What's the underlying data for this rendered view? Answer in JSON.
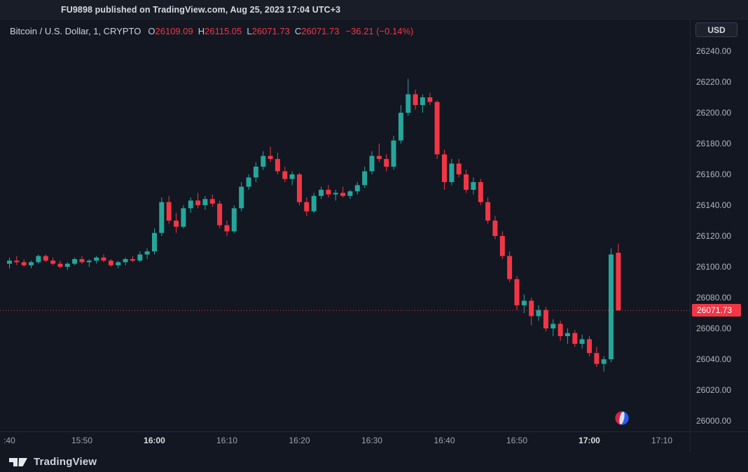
{
  "header": {
    "publish_text": "FU9898 published on TradingView.com, Aug 25, 2023 17:04 UTC+3"
  },
  "legend": {
    "symbol": "Bitcoin / U.S. Dollar, 1, CRYPTO",
    "o_label": "O",
    "o_value": "26109.09",
    "h_label": "H",
    "h_value": "26115.05",
    "l_label": "L",
    "l_value": "26071.73",
    "c_label": "C",
    "c_value": "26071.73",
    "change": "−36.21 (−0.14%)"
  },
  "currency_button": "USD",
  "footer": {
    "brand": "TradingView"
  },
  "colors": {
    "background": "#131722",
    "up": "#26a69a",
    "down": "#f23645",
    "axis_text": "#b2b5be",
    "price_label_bg": "#f23645",
    "price_label_text": "#ffffff"
  },
  "chart_data": {
    "type": "candlestick",
    "title": "Bitcoin / U.S. Dollar, 1, CRYPTO",
    "symbol": "BTCUSD",
    "interval_minutes": 1,
    "start_time": "15:40",
    "columns": [
      "open",
      "high",
      "low",
      "close"
    ],
    "candles": [
      [
        26102,
        26106,
        26099,
        26104
      ],
      [
        26104,
        26107,
        26101,
        26103
      ],
      [
        26103,
        26105,
        26100,
        26101
      ],
      [
        26101,
        26104,
        26099,
        26103
      ],
      [
        26103,
        26108,
        26102,
        26107
      ],
      [
        26107,
        26108,
        26103,
        26104
      ],
      [
        26104,
        26106,
        26101,
        26102
      ],
      [
        26102,
        26104,
        26099,
        26100
      ],
      [
        26100,
        26103,
        26098,
        26102
      ],
      [
        26102,
        26106,
        26101,
        26105
      ],
      [
        26105,
        26107,
        26102,
        26103
      ],
      [
        26103,
        26105,
        26100,
        26104
      ],
      [
        26104,
        26107,
        26102,
        26106
      ],
      [
        26106,
        26108,
        26103,
        26104
      ],
      [
        26104,
        26105,
        26100,
        26101
      ],
      [
        26101,
        26104,
        26099,
        26103
      ],
      [
        26103,
        26106,
        26101,
        26105
      ],
      [
        26105,
        26107,
        26103,
        26104
      ],
      [
        26104,
        26110,
        26103,
        26108
      ],
      [
        26108,
        26112,
        26105,
        26110
      ],
      [
        26110,
        26125,
        26108,
        26122
      ],
      [
        26122,
        26145,
        26120,
        26142
      ],
      [
        26142,
        26146,
        26128,
        26130
      ],
      [
        26130,
        26135,
        26122,
        26126
      ],
      [
        26126,
        26140,
        26125,
        26138
      ],
      [
        26138,
        26145,
        26135,
        26143
      ],
      [
        26143,
        26148,
        26138,
        26140
      ],
      [
        26140,
        26146,
        26137,
        26144
      ],
      [
        26144,
        26147,
        26139,
        26141
      ],
      [
        26141,
        26143,
        26125,
        26127
      ],
      [
        26127,
        26130,
        26120,
        26123
      ],
      [
        26123,
        26140,
        26122,
        26138
      ],
      [
        26138,
        26155,
        26136,
        26152
      ],
      [
        26152,
        26160,
        26150,
        26158
      ],
      [
        26158,
        26168,
        26155,
        26165
      ],
      [
        26165,
        26175,
        26163,
        26172
      ],
      [
        26172,
        26178,
        26168,
        26170
      ],
      [
        26170,
        26174,
        26160,
        26162
      ],
      [
        26162,
        26165,
        26155,
        26157
      ],
      [
        26157,
        26162,
        26153,
        26160
      ],
      [
        26160,
        26161,
        26140,
        26142
      ],
      [
        26142,
        26145,
        26133,
        26136
      ],
      [
        26136,
        26148,
        26135,
        26146
      ],
      [
        26146,
        26152,
        26144,
        26150
      ],
      [
        26150,
        26153,
        26145,
        26147
      ],
      [
        26147,
        26150,
        26143,
        26148
      ],
      [
        26148,
        26152,
        26145,
        26146
      ],
      [
        26146,
        26150,
        26144,
        26149
      ],
      [
        26149,
        26155,
        26147,
        26153
      ],
      [
        26153,
        26165,
        26151,
        26162
      ],
      [
        26162,
        26175,
        26160,
        26172
      ],
      [
        26172,
        26180,
        26168,
        26170
      ],
      [
        26170,
        26173,
        26162,
        26165
      ],
      [
        26165,
        26185,
        26163,
        26182
      ],
      [
        26182,
        26205,
        26180,
        26200
      ],
      [
        26200,
        26222,
        26198,
        26212
      ],
      [
        26212,
        26215,
        26202,
        26205
      ],
      [
        26205,
        26212,
        26200,
        26210
      ],
      [
        26210,
        26213,
        26205,
        26207
      ],
      [
        26207,
        26208,
        26170,
        26173
      ],
      [
        26173,
        26176,
        26150,
        26155
      ],
      [
        26155,
        26170,
        26153,
        26167
      ],
      [
        26167,
        26170,
        26158,
        26160
      ],
      [
        26160,
        26163,
        26148,
        26150
      ],
      [
        26150,
        26158,
        26147,
        26155
      ],
      [
        26155,
        26157,
        26140,
        26142
      ],
      [
        26142,
        26145,
        26128,
        26130
      ],
      [
        26130,
        26133,
        26118,
        26120
      ],
      [
        26120,
        26123,
        26105,
        26107
      ],
      [
        26107,
        26110,
        26090,
        26092
      ],
      [
        26092,
        26094,
        26072,
        26075
      ],
      [
        26075,
        26082,
        26070,
        26078
      ],
      [
        26078,
        26080,
        26062,
        26068
      ],
      [
        26068,
        26075,
        26065,
        26072
      ],
      [
        26072,
        26074,
        26058,
        26060
      ],
      [
        26060,
        26066,
        26055,
        26063
      ],
      [
        26063,
        26065,
        26052,
        26055
      ],
      [
        26055,
        26060,
        26050,
        26057
      ],
      [
        26057,
        26059,
        26048,
        26050
      ],
      [
        26050,
        26056,
        26047,
        26053
      ],
      [
        26053,
        26055,
        26042,
        26044
      ],
      [
        26044,
        26048,
        26035,
        26037
      ],
      [
        26037,
        26042,
        26032,
        26040
      ],
      [
        26040,
        26112,
        26038,
        26108
      ],
      [
        26109.09,
        26115.05,
        26071.73,
        26071.73
      ]
    ],
    "price_ticks": [
      26240,
      26220,
      26200,
      26180,
      26160,
      26140,
      26120,
      26100,
      26080,
      26060,
      26040,
      26020,
      26000
    ],
    "time_ticks": [
      {
        "label": ":40",
        "index": 0
      },
      {
        "label": "15:50",
        "index": 10
      },
      {
        "label": "16:00",
        "index": 20
      },
      {
        "label": "16:10",
        "index": 30
      },
      {
        "label": "16:20",
        "index": 40
      },
      {
        "label": "16:30",
        "index": 50
      },
      {
        "label": "16:40",
        "index": 60
      },
      {
        "label": "16:50",
        "index": 70
      },
      {
        "label": "17:00",
        "index": 80
      },
      {
        "label": "17:10",
        "index": 90
      }
    ],
    "y_range": [
      26000,
      26240
    ],
    "grid": false,
    "last_price": 26071.73,
    "last_price_label": "26071.73",
    "up_color": "#26a69a",
    "down_color": "#f23645"
  }
}
